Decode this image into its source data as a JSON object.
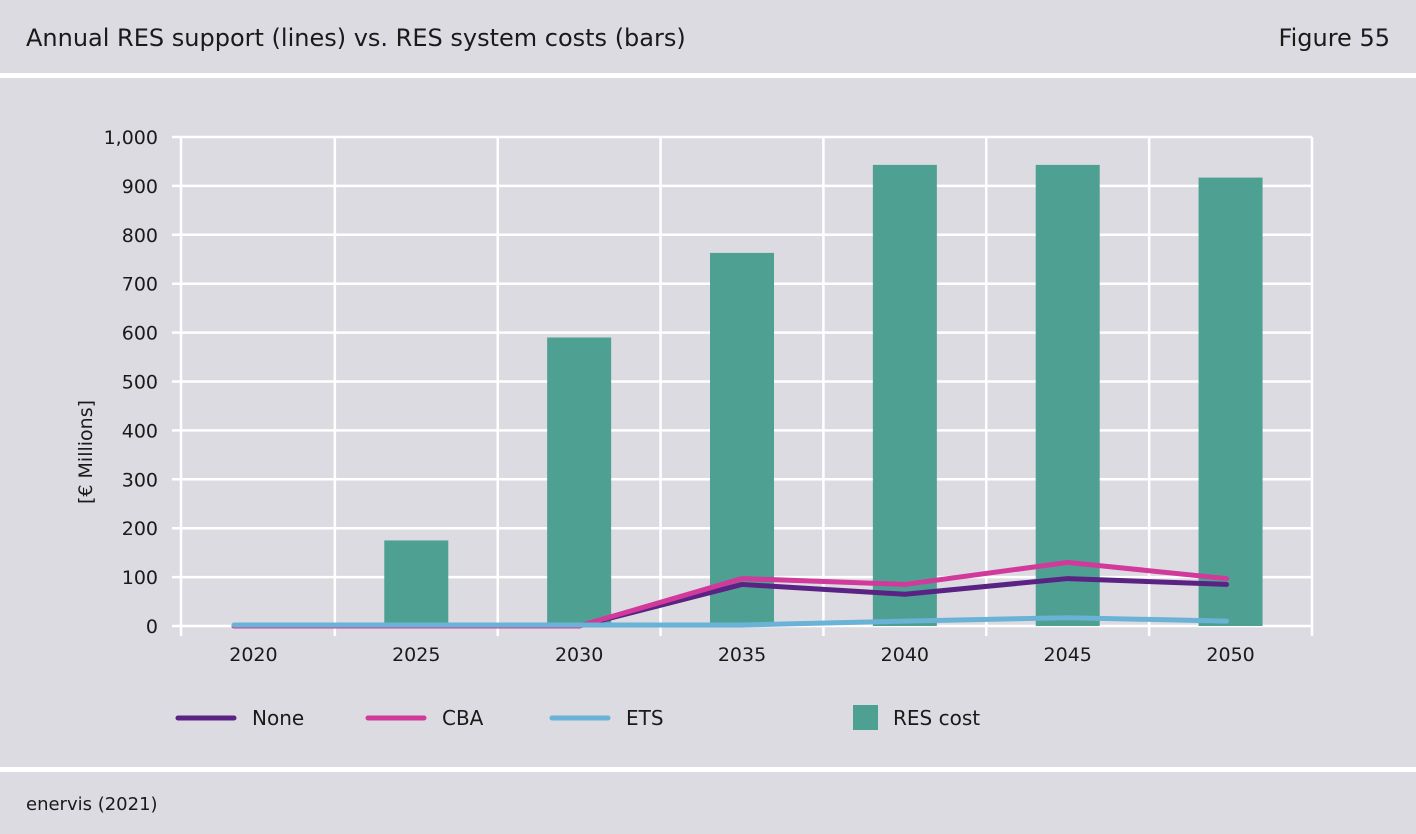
{
  "header": {
    "title": "Annual RES support (lines) vs. RES system costs (bars)",
    "figure": "Figure 55"
  },
  "footer": {
    "source": "enervis (2021)"
  },
  "colors": {
    "None": "#5a2283",
    "CBA": "#d1399a",
    "ETS": "#6ab2d6",
    "RES cost": "#4ea192",
    "grid": "#ffffff",
    "background": "#dcdbe1"
  },
  "chart_data": {
    "type": "bar",
    "title": "Annual RES support (lines) vs. RES system costs (bars)",
    "xlabel": "",
    "ylabel": "[€ Millions]",
    "ylim": [
      0,
      1000
    ],
    "yticks": [
      0,
      100,
      200,
      300,
      400,
      500,
      600,
      700,
      800,
      900,
      1000
    ],
    "ytick_labels": [
      "0",
      "100",
      "200",
      "300",
      "400",
      "500",
      "600",
      "700",
      "800",
      "900",
      "1,000"
    ],
    "categories": [
      "2020",
      "2025",
      "2030",
      "2035",
      "2040",
      "2045",
      "2050"
    ],
    "bars": {
      "name": "RES cost",
      "values": [
        0,
        175,
        590,
        763,
        943,
        943,
        917
      ]
    },
    "series": [
      {
        "name": "None",
        "type": "line",
        "values": [
          0,
          0,
          0,
          85,
          65,
          97,
          85
        ]
      },
      {
        "name": "CBA",
        "type": "line",
        "values": [
          0,
          0,
          0,
          97,
          85,
          130,
          97
        ]
      },
      {
        "name": "ETS",
        "type": "line",
        "values": [
          2,
          2,
          2,
          2,
          10,
          17,
          10
        ]
      }
    ],
    "grid": true,
    "legend_position": "bottom"
  }
}
